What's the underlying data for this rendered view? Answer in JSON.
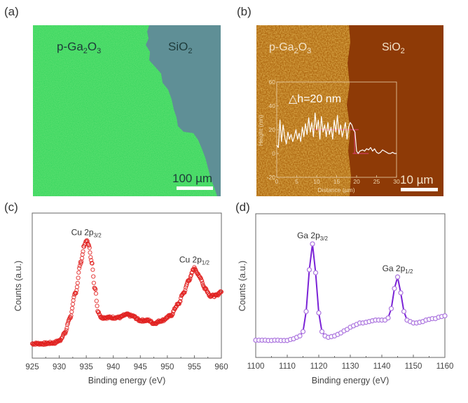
{
  "panels": {
    "a": {
      "tag": "(a)",
      "left_label": "p-Ga",
      "left_sub1": "2",
      "left_mid": "O",
      "left_sub2": "3",
      "right_label": "SiO",
      "right_sub": "2",
      "scale_bar": "100 µm",
      "colors": {
        "film": "#2fd35a",
        "substrate": "#5f8f96",
        "bar": "#ffffff"
      }
    },
    "b": {
      "tag": "(b)",
      "left_label": "p-Ga",
      "left_sub1": "2",
      "left_mid": "O",
      "left_sub2": "3",
      "right_label": "SiO",
      "right_sub": "2",
      "scale_bar": "10 µm",
      "annotation": "△h=20 nm",
      "colors": {
        "film": "#b06a12",
        "substrate": "#8e3a06",
        "trace": "#ffffff",
        "marker": "#e0407a"
      }
    },
    "c": {
      "tag": "(c)"
    },
    "d": {
      "tag": "(d)"
    }
  },
  "chart_data": [
    {
      "id": "b-inset",
      "type": "line",
      "title": "",
      "xlabel": "Distance (µm)",
      "ylabel": "Height (nm)",
      "xlim": [
        0,
        30
      ],
      "ylim": [
        -20,
        60
      ],
      "xticks": [
        0,
        5,
        10,
        15,
        20,
        25,
        30
      ],
      "yticks": [
        -20,
        0,
        20,
        40,
        60
      ],
      "annotation": "△h=20 nm",
      "series": [
        {
          "name": "height profile",
          "color": "#ffffff",
          "x": [
            0,
            0.4,
            0.8,
            1.2,
            1.6,
            2.0,
            2.4,
            2.8,
            3.2,
            3.6,
            4.0,
            4.4,
            4.8,
            5.2,
            5.6,
            6.0,
            6.4,
            6.8,
            7.2,
            7.6,
            8.0,
            8.4,
            8.8,
            9.2,
            9.6,
            10.0,
            10.4,
            10.8,
            11.2,
            11.6,
            12.0,
            12.4,
            12.8,
            13.2,
            13.6,
            14.0,
            14.4,
            14.8,
            15.2,
            15.6,
            16.0,
            16.4,
            16.8,
            17.2,
            17.6,
            18.0,
            18.4,
            18.8,
            19.2,
            19.6,
            20.0,
            20.4,
            20.8,
            21.5,
            22.0,
            22.5,
            23.0,
            23.5,
            24.0,
            24.5,
            25.0,
            25.5,
            26.0,
            26.5,
            27.0,
            27.5,
            28.0,
            28.5,
            29.0,
            29.5,
            30.0
          ],
          "y": [
            7,
            5,
            28,
            10,
            24,
            14,
            8,
            18,
            12,
            16,
            10,
            14,
            20,
            12,
            17,
            10,
            22,
            14,
            25,
            16,
            30,
            18,
            26,
            14,
            34,
            20,
            28,
            12,
            31,
            18,
            24,
            14,
            26,
            16,
            22,
            12,
            28,
            18,
            32,
            16,
            24,
            14,
            20,
            26,
            12,
            22,
            26,
            24,
            20,
            18,
            2,
            0,
            2,
            3,
            2,
            4,
            3,
            5,
            2,
            4,
            1,
            0,
            1,
            3,
            2,
            1,
            0,
            0,
            1,
            0,
            0
          ]
        }
      ],
      "markers": {
        "upper_line": {
          "y": 20,
          "x_range": [
            9,
            20.5
          ]
        },
        "lower_line": {
          "y": 0,
          "x_range": [
            19,
            23
          ]
        },
        "step_x": 19.5
      }
    },
    {
      "id": "c",
      "type": "scatter",
      "title": "",
      "xlabel": "Binding energy (eV)",
      "ylabel": "Counts (a.u.)",
      "xlim": [
        925,
        960
      ],
      "ylim": [
        0,
        100
      ],
      "xticks": [
        925,
        930,
        935,
        940,
        945,
        950,
        955,
        960
      ],
      "show_yticks": false,
      "color": "#e0201e",
      "annotations": [
        {
          "text": "Cu 2p",
          "sub": "3/2",
          "x": 935,
          "y": 81
        },
        {
          "text": "Cu 2p",
          "sub": "1/2",
          "x": 955,
          "y": 62
        }
      ],
      "series": [
        {
          "name": "Cu 2p",
          "anchors_x": [
            925,
            927,
            929,
            930,
            931,
            932,
            933,
            934,
            934.6,
            935,
            935.4,
            936,
            936.6,
            937.2,
            937.8,
            939,
            941,
            942.5,
            943.5,
            945,
            946.5,
            947.5,
            949,
            950.5,
            952,
            953,
            954,
            955,
            956,
            957,
            958,
            959,
            960
          ],
          "anchors_y": [
            10,
            10,
            10.5,
            12,
            17,
            28,
            45,
            66,
            77,
            81,
            79,
            66,
            48,
            32,
            28,
            28,
            28,
            30,
            29,
            26,
            26,
            24,
            26,
            29,
            37,
            45,
            54,
            62,
            56,
            48,
            43,
            43,
            46
          ]
        }
      ]
    },
    {
      "id": "d",
      "type": "line",
      "title": "",
      "xlabel": "Binding energy (eV)",
      "ylabel": "Counts (a.u.)",
      "xlim": [
        1100,
        1160
      ],
      "ylim": [
        0,
        100
      ],
      "xticks": [
        1100,
        1110,
        1120,
        1130,
        1140,
        1150,
        1160
      ],
      "show_yticks": false,
      "color": "#7a22d6",
      "marker_edge": "#b07ce0",
      "annotations": [
        {
          "text": "Ga 2p",
          "sub": "3/2",
          "x": 1118,
          "y": 79
        },
        {
          "text": "Ga 2p",
          "sub": "1/2",
          "x": 1145,
          "y": 56
        }
      ],
      "series": [
        {
          "name": "Ga 2p",
          "x": [
            1100,
            1101,
            1102,
            1103,
            1104,
            1105,
            1106,
            1107,
            1108,
            1109,
            1110,
            1111,
            1112,
            1113,
            1114,
            1115,
            1116,
            1117,
            1118,
            1119,
            1120,
            1121,
            1122,
            1123,
            1124,
            1125,
            1126,
            1127,
            1128,
            1129,
            1130,
            1131,
            1132,
            1133,
            1134,
            1135,
            1136,
            1137,
            1138,
            1139,
            1140,
            1141,
            1142,
            1143,
            1144,
            1145,
            1146,
            1147,
            1148,
            1149,
            1150,
            1151,
            1152,
            1153,
            1154,
            1155,
            1156,
            1157,
            1158,
            1159,
            1160
          ],
          "y": [
            12,
            12,
            12,
            12,
            11.8,
            11.8,
            12,
            12,
            11.8,
            11.8,
            11.8,
            12.5,
            13,
            14,
            15,
            18,
            32,
            61,
            79,
            59,
            31,
            18,
            15,
            14,
            14.5,
            15,
            16,
            17,
            18.5,
            19.5,
            21,
            22,
            23,
            24,
            24,
            24.5,
            25,
            25.5,
            26,
            26,
            26,
            26,
            27.5,
            34,
            48,
            56,
            45,
            32,
            26,
            25,
            24,
            24,
            24.5,
            25,
            26,
            26.5,
            27,
            27,
            28,
            28.5,
            29
          ]
        }
      ]
    }
  ]
}
